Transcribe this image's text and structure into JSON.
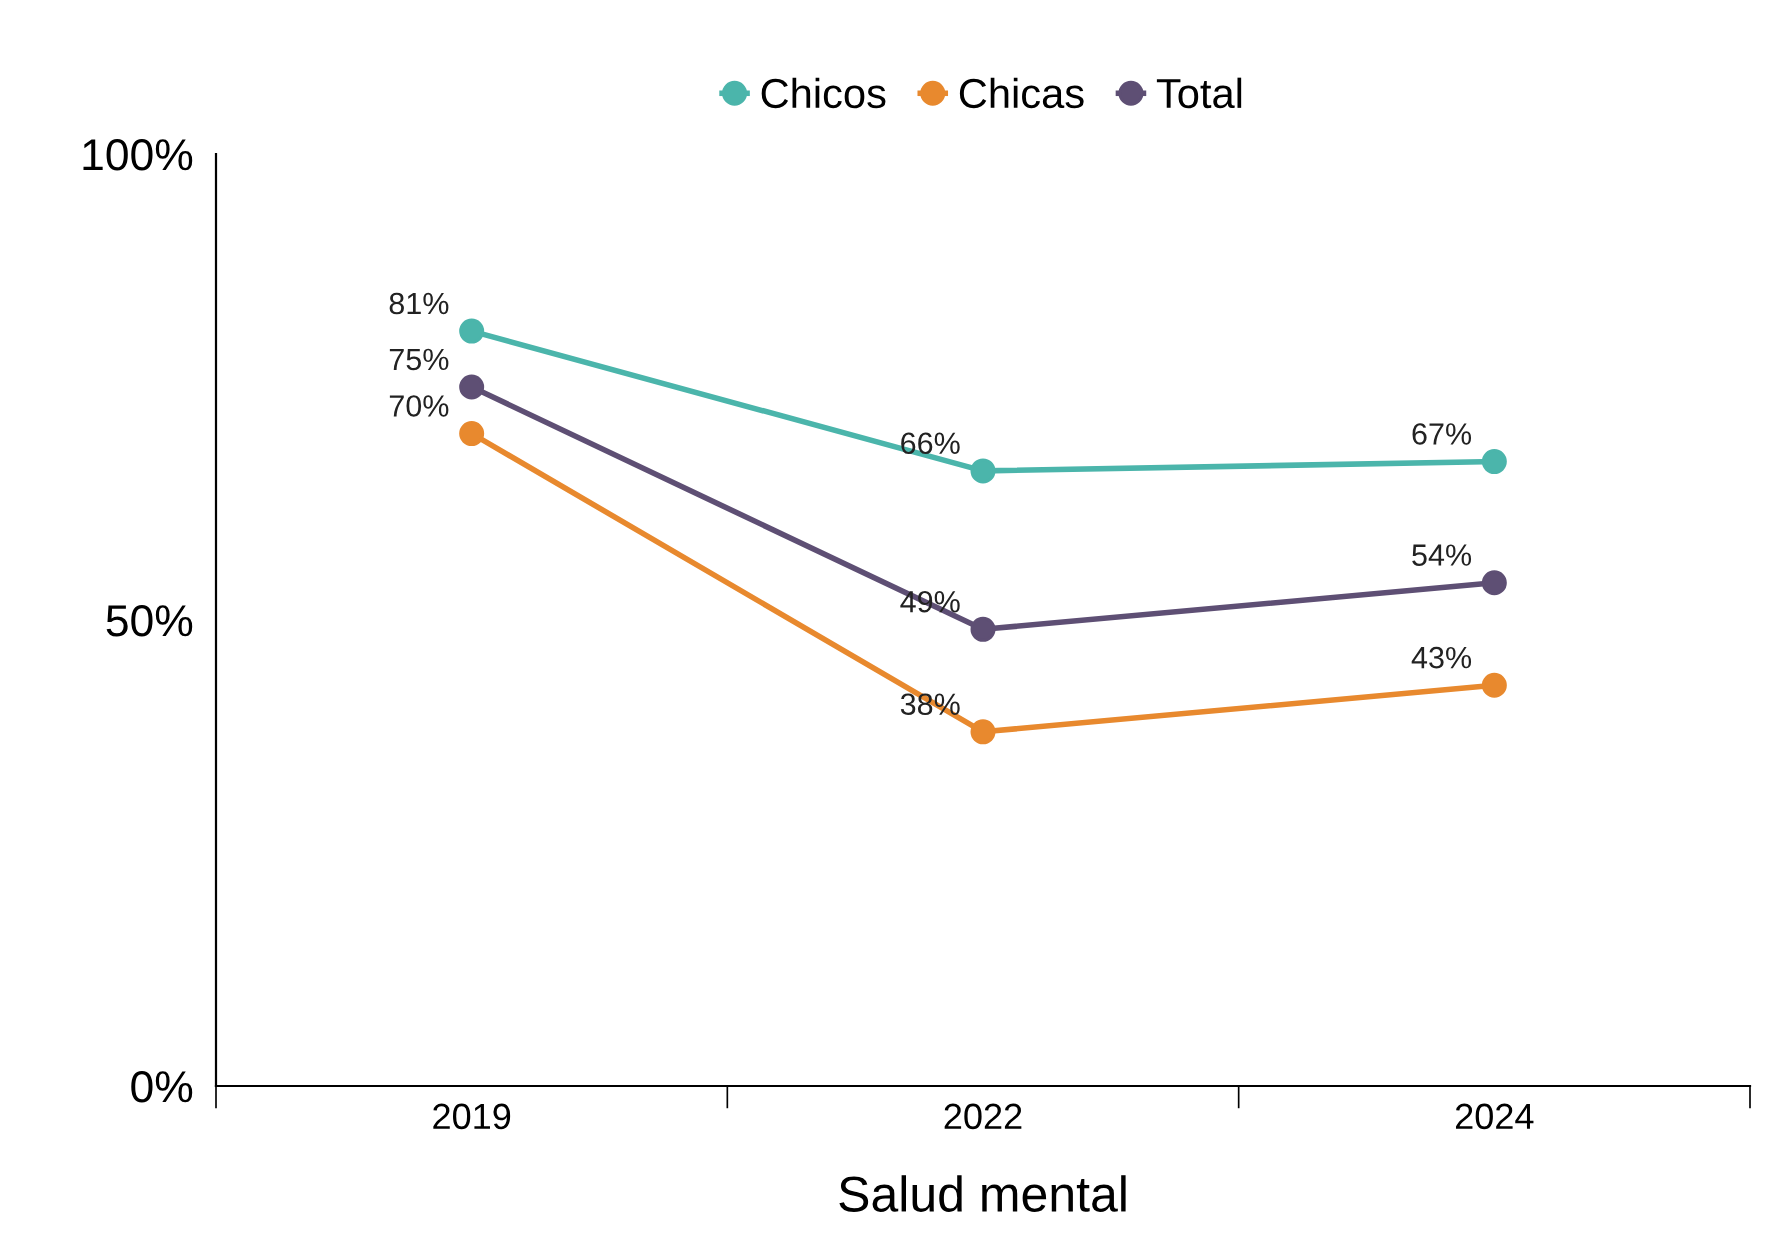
{
  "chart_data": {
    "type": "line",
    "xlabel": "Salud mental",
    "categories": [
      "2019",
      "2022",
      "2024"
    ],
    "series": [
      {
        "name": "Chicos",
        "color": "#4bb5ab",
        "values": [
          81,
          66,
          67
        ],
        "value_labels": [
          "81%",
          "66%",
          "67%"
        ]
      },
      {
        "name": "Chicas",
        "color": "#e8892e",
        "values": [
          70,
          38,
          43
        ],
        "value_labels": [
          "70%",
          "38%",
          "43%"
        ]
      },
      {
        "name": "Total",
        "color": "#5e4f74",
        "values": [
          75,
          49,
          54
        ],
        "value_labels": [
          "75%",
          "49%",
          "54%"
        ]
      }
    ],
    "ylim": [
      0,
      100
    ],
    "yticks": [
      {
        "value": 0,
        "label": "0%"
      },
      {
        "value": 50,
        "label": "50%"
      },
      {
        "value": 100,
        "label": "100%"
      }
    ],
    "grid": false,
    "legend": "top",
    "marker": "circle",
    "line_style": "solid"
  }
}
